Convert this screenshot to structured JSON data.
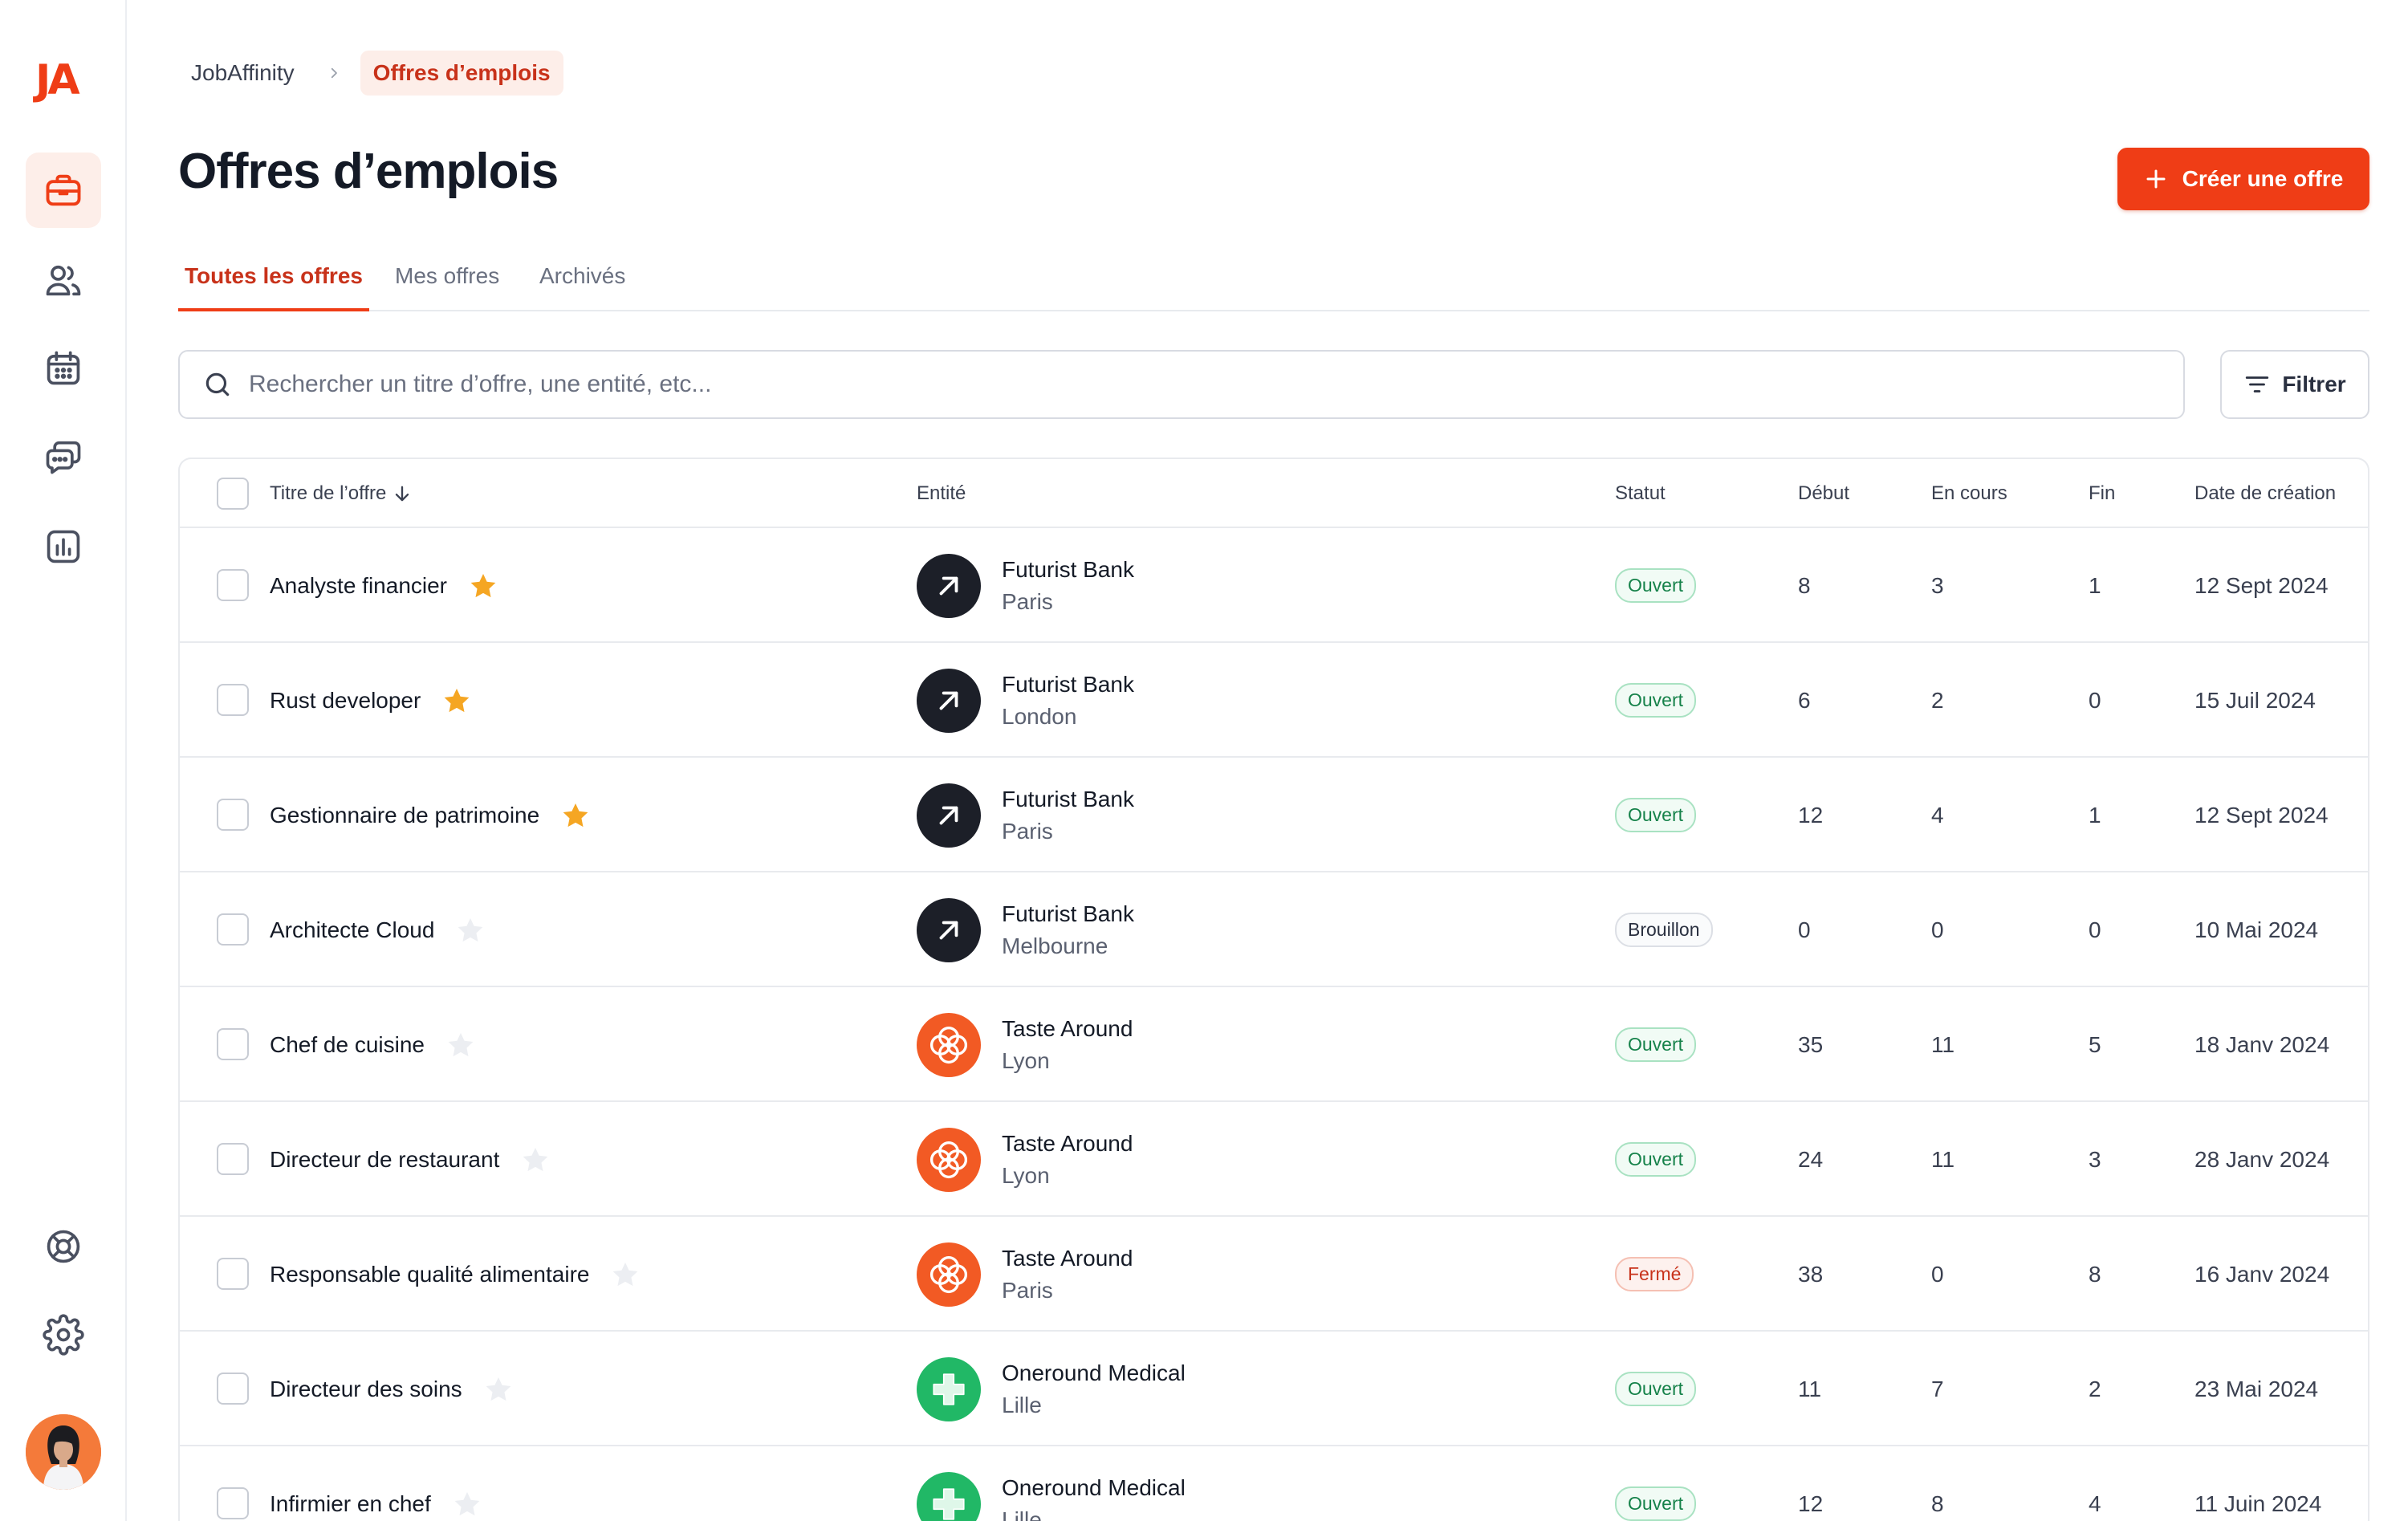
{
  "app": {
    "logo": "JA"
  },
  "sidebar": {
    "nav": [
      {
        "icon": "briefcase-icon",
        "active": true
      },
      {
        "icon": "users-icon",
        "active": false
      },
      {
        "icon": "calendar-icon",
        "active": false
      },
      {
        "icon": "messages-icon",
        "active": false
      },
      {
        "icon": "chart-icon",
        "active": false
      }
    ],
    "bottom": [
      {
        "icon": "help-lifebuoy-icon"
      },
      {
        "icon": "gear-icon"
      }
    ]
  },
  "breadcrumb": {
    "root": "JobAffinity",
    "current": "Offres d’emplois"
  },
  "page": {
    "title": "Offres d’emplois",
    "create_label": "Créer une offre"
  },
  "tabs": [
    {
      "label": "Toutes les offres",
      "active": true
    },
    {
      "label": "Mes offres",
      "active": false
    },
    {
      "label": "Archivés",
      "active": false
    }
  ],
  "search": {
    "placeholder": "Rechercher un titre d’offre, une entité, etc...",
    "value": ""
  },
  "filter": {
    "label": "Filtrer"
  },
  "table": {
    "columns": {
      "title": "Titre de l’offre",
      "entity": "Entité",
      "status": "Statut",
      "start": "Début",
      "ongoing": "En cours",
      "end": "Fin",
      "created": "Date de création"
    },
    "rows": [
      {
        "title": "Analyste financier",
        "starred": true,
        "entity": "Futurist Bank",
        "city": "Paris",
        "logo": "futurist",
        "status": "Ouvert",
        "start": "8",
        "ongoing": "3",
        "end": "1",
        "created": "12 Sept 2024"
      },
      {
        "title": "Rust developer",
        "starred": true,
        "entity": "Futurist Bank",
        "city": "London",
        "logo": "futurist",
        "status": "Ouvert",
        "start": "6",
        "ongoing": "2",
        "end": "0",
        "created": "15 Juil 2024"
      },
      {
        "title": "Gestionnaire de patrimoine",
        "starred": true,
        "entity": "Futurist Bank",
        "city": "Paris",
        "logo": "futurist",
        "status": "Ouvert",
        "start": "12",
        "ongoing": "4",
        "end": "1",
        "created": "12 Sept 2024"
      },
      {
        "title": "Architecte Cloud",
        "starred": false,
        "entity": "Futurist Bank",
        "city": "Melbourne",
        "logo": "futurist",
        "status": "Brouillon",
        "start": "0",
        "ongoing": "0",
        "end": "0",
        "created": "10 Mai 2024"
      },
      {
        "title": "Chef de cuisine",
        "starred": false,
        "entity": "Taste Around",
        "city": "Lyon",
        "logo": "taste",
        "status": "Ouvert",
        "start": "35",
        "ongoing": "11",
        "end": "5",
        "created": "18 Janv 2024"
      },
      {
        "title": "Directeur de restaurant",
        "starred": false,
        "entity": "Taste Around",
        "city": "Lyon",
        "logo": "taste",
        "status": "Ouvert",
        "start": "24",
        "ongoing": "11",
        "end": "3",
        "created": "28 Janv 2024"
      },
      {
        "title": "Responsable qualité alimentaire",
        "starred": false,
        "entity": "Taste Around",
        "city": "Paris",
        "logo": "taste",
        "status": "Fermé",
        "start": "38",
        "ongoing": "0",
        "end": "8",
        "created": "16 Janv 2024"
      },
      {
        "title": "Directeur des soins",
        "starred": false,
        "entity": "Oneround Medical",
        "city": "Lille",
        "logo": "oneround",
        "status": "Ouvert",
        "start": "11",
        "ongoing": "7",
        "end": "2",
        "created": "23 Mai 2024"
      },
      {
        "title": "Infirmier en chef",
        "starred": false,
        "entity": "Oneround Medical",
        "city": "Lille",
        "logo": "oneround",
        "status": "Ouvert",
        "start": "12",
        "ongoing": "8",
        "end": "4",
        "created": "11 Juin 2024"
      }
    ]
  },
  "colors": {
    "accent": "#ef3d16",
    "accent_soft": "#fdeee9",
    "star_on": "#f5a623",
    "star_off": "#eceef2",
    "futurist": "#1c1f28",
    "taste": "#f25a24",
    "oneround": "#21b866"
  }
}
